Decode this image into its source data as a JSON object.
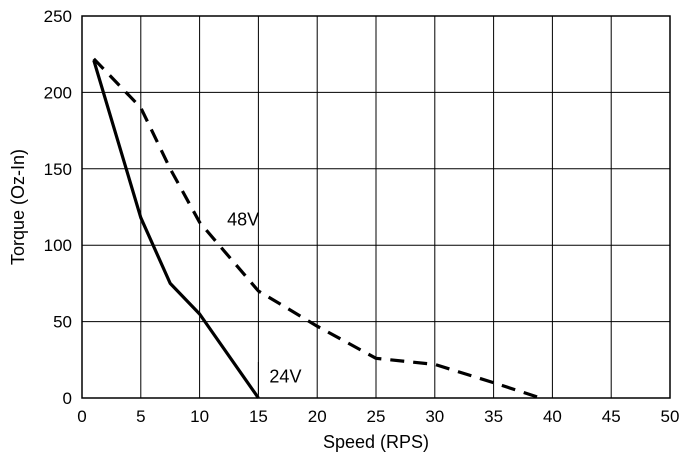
{
  "chart_data": {
    "type": "line",
    "title": "",
    "xlabel": "Speed (RPS)",
    "ylabel": "Torque (Oz-In)",
    "xlim": [
      0,
      50
    ],
    "ylim": [
      0,
      250
    ],
    "x_ticks": [
      "0",
      "5",
      "10",
      "15",
      "20",
      "25",
      "30",
      "35",
      "40",
      "45",
      "50"
    ],
    "y_ticks": [
      "0",
      "50",
      "100",
      "150",
      "200",
      "250"
    ],
    "grid": true,
    "legend": "none",
    "series": [
      {
        "name": "24V",
        "line_style": "solid",
        "color": "#000000",
        "points": [
          [
            1,
            221
          ],
          [
            5,
            118
          ],
          [
            7.5,
            75
          ],
          [
            10,
            55
          ],
          [
            15,
            0
          ]
        ]
      },
      {
        "name": "48V",
        "line_style": "dashed",
        "color": "#000000",
        "points": [
          [
            1,
            222
          ],
          [
            5,
            190
          ],
          [
            7.5,
            150
          ],
          [
            10,
            115
          ],
          [
            15,
            70
          ],
          [
            20,
            47
          ],
          [
            25,
            26
          ],
          [
            30,
            22
          ],
          [
            35,
            10
          ],
          [
            39,
            0
          ]
        ]
      }
    ],
    "annotations": [
      {
        "text": "48V",
        "x": 13.7,
        "y": 113
      },
      {
        "text": "24V",
        "x": 17.3,
        "y": 10
      }
    ]
  }
}
